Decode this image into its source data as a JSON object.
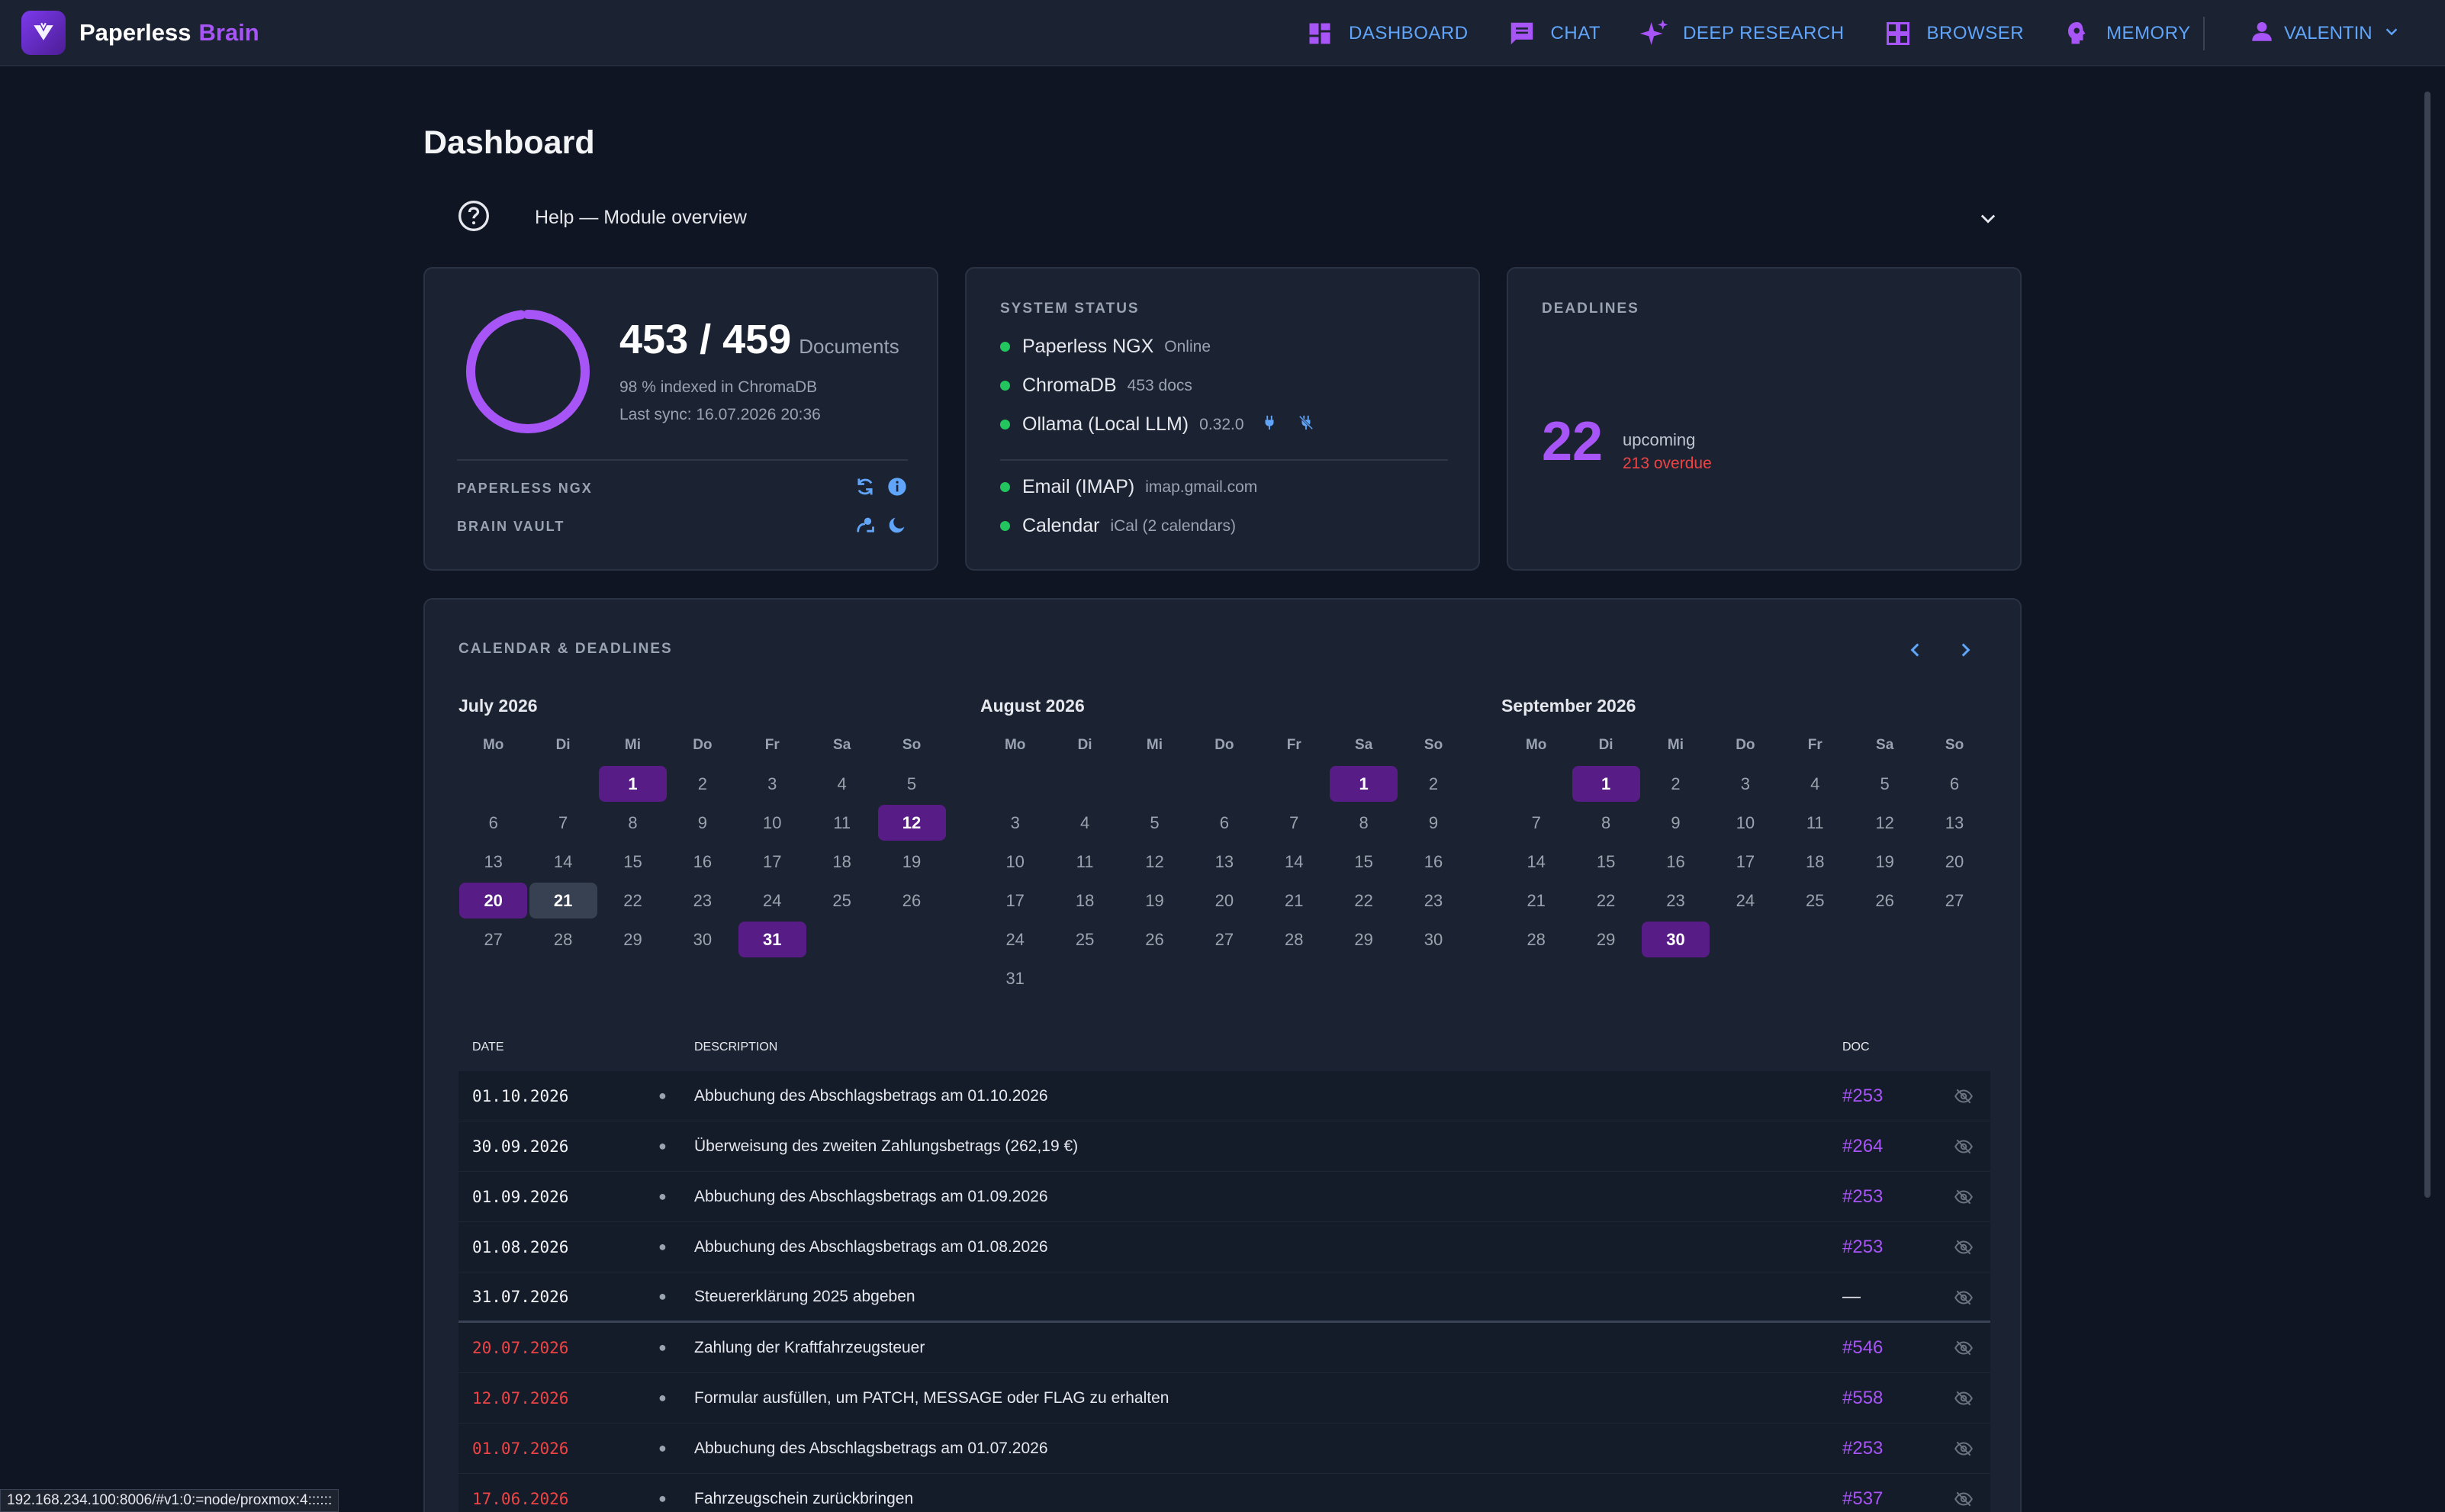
{
  "brand": {
    "name": "Paperless",
    "accent": "Brain"
  },
  "nav": [
    {
      "label": "DASHBOARD",
      "icon": "dashboard-icon"
    },
    {
      "label": "CHAT",
      "icon": "chat-icon"
    },
    {
      "label": "DEEP RESEARCH",
      "icon": "sparkle-icon"
    },
    {
      "label": "BROWSER",
      "icon": "grid-icon"
    },
    {
      "label": "MEMORY",
      "icon": "brain-icon"
    }
  ],
  "user": {
    "name": "VALENTIN"
  },
  "page": {
    "title": "Dashboard"
  },
  "help": {
    "label": "Help — Module overview"
  },
  "documents": {
    "count": "453 / 459",
    "unit": "Documents",
    "indexed_percent": 98,
    "indexed_text": "98 % indexed in ChromaDB",
    "last_sync": "Last sync: 16.07.2026 20:36",
    "paperless_label": "PAPERLESS NGX",
    "vault_label": "BRAIN VAULT"
  },
  "system_status": {
    "title": "SYSTEM STATUS",
    "services": [
      {
        "name": "Paperless NGX",
        "meta": "Online"
      },
      {
        "name": "ChromaDB",
        "meta": "453 docs"
      },
      {
        "name": "Ollama (Local LLM)",
        "meta": "0.32.0"
      },
      {
        "name": "Email (IMAP)",
        "meta": "imap.gmail.com"
      },
      {
        "name": "Calendar",
        "meta": "iCal (2 calendars)"
      }
    ]
  },
  "deadlines": {
    "title": "DEADLINES",
    "upcoming": "22",
    "upcoming_label": "upcoming",
    "overdue": "213 overdue"
  },
  "calendar": {
    "title": "CALENDAR & DEADLINES",
    "weekdays": [
      "Mo",
      "Di",
      "Mi",
      "Do",
      "Fr",
      "Sa",
      "So"
    ],
    "months": [
      {
        "title": "July 2026",
        "offset": 2,
        "days": 31,
        "highlighted": [
          1,
          12,
          20,
          31
        ],
        "today": 21
      },
      {
        "title": "August 2026",
        "offset": 5,
        "days": 31,
        "highlighted": [
          1
        ],
        "today": null
      },
      {
        "title": "September 2026",
        "offset": 1,
        "days": 30,
        "highlighted": [
          1,
          30
        ],
        "today": null
      }
    ]
  },
  "table": {
    "headers": {
      "date": "DATE",
      "description": "DESCRIPTION",
      "doc": "DOC"
    },
    "rows": [
      {
        "date": "01.10.2026",
        "desc": "Abbuchung des Abschlagsbetrags am 01.10.2026",
        "doc": "#253",
        "overdue": false
      },
      {
        "date": "30.09.2026",
        "desc": "Überweisung des zweiten Zahlungsbetrags (262,19 €)",
        "doc": "#264",
        "overdue": false
      },
      {
        "date": "01.09.2026",
        "desc": "Abbuchung des Abschlagsbetrags am 01.09.2026",
        "doc": "#253",
        "overdue": false
      },
      {
        "date": "01.08.2026",
        "desc": "Abbuchung des Abschlagsbetrags am 01.08.2026",
        "doc": "#253",
        "overdue": false
      },
      {
        "date": "31.07.2026",
        "desc": "Steuererklärung 2025 abgeben",
        "doc": "—",
        "overdue": false
      },
      {
        "date": "20.07.2026",
        "desc": "Zahlung der Kraftfahrzeugsteuer",
        "doc": "#546",
        "overdue": true
      },
      {
        "date": "12.07.2026",
        "desc": "Formular ausfüllen, um PATCH, MESSAGE oder FLAG zu erhalten",
        "doc": "#558",
        "overdue": true
      },
      {
        "date": "01.07.2026",
        "desc": "Abbuchung des Abschlagsbetrags am 01.07.2026",
        "doc": "#253",
        "overdue": true
      },
      {
        "date": "17.06.2026",
        "desc": "Fahrzeugschein zurückbringen",
        "doc": "#537",
        "overdue": true
      }
    ]
  },
  "status_url": "192.168.234.100:8006/#v1:0:=node/proxmox:4::::::",
  "colors": {
    "accent": "#a855f7",
    "link": "#60a5fa",
    "online": "#22c55e",
    "overdue": "#ef4444",
    "highlight": "#581c87"
  }
}
